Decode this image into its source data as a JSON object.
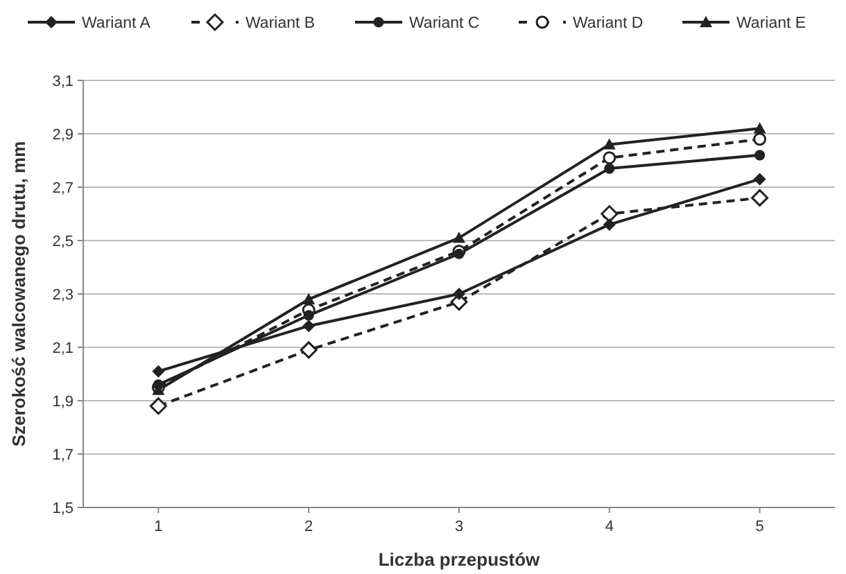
{
  "chart_data": {
    "type": "line",
    "xlabel": "Liczba przepustów",
    "ylabel": "Szerokość walcowanego drutu, mm",
    "categories": [
      "1",
      "2",
      "3",
      "4",
      "5"
    ],
    "series": [
      {
        "name": "Wariant A",
        "color": "#222222",
        "marker": "diamond",
        "line_style": "solid",
        "values": [
          2.01,
          2.18,
          2.3,
          2.56,
          2.73
        ]
      },
      {
        "name": "Wariant B",
        "color": "#222222",
        "marker": "diamond-open",
        "line_style": "dashed",
        "values": [
          1.88,
          2.09,
          2.27,
          2.6,
          2.66
        ]
      },
      {
        "name": "Wariant C",
        "color": "#222222",
        "marker": "circle",
        "line_style": "solid",
        "values": [
          1.96,
          2.22,
          2.45,
          2.77,
          2.82
        ]
      },
      {
        "name": "Wariant D",
        "color": "#222222",
        "marker": "circle-open",
        "line_style": "dashed",
        "values": [
          1.95,
          2.24,
          2.46,
          2.81,
          2.88
        ]
      },
      {
        "name": "Wariant E",
        "color": "#222222",
        "marker": "triangle",
        "line_style": "solid",
        "values": [
          1.94,
          2.28,
          2.51,
          2.86,
          2.92
        ]
      }
    ],
    "ylim": [
      1.5,
      3.1
    ],
    "yticks": [
      {
        "value": 1.5,
        "label": "1,5"
      },
      {
        "value": 1.7,
        "label": "1,7"
      },
      {
        "value": 1.9,
        "label": "1,9"
      },
      {
        "value": 2.1,
        "label": "2,1"
      },
      {
        "value": 2.3,
        "label": "2,3"
      },
      {
        "value": 2.5,
        "label": "2,5"
      },
      {
        "value": 2.7,
        "label": "2,7"
      },
      {
        "value": 2.9,
        "label": "2,9"
      },
      {
        "value": 3.1,
        "label": "3,1"
      }
    ],
    "grid": "y",
    "legend": "top"
  }
}
